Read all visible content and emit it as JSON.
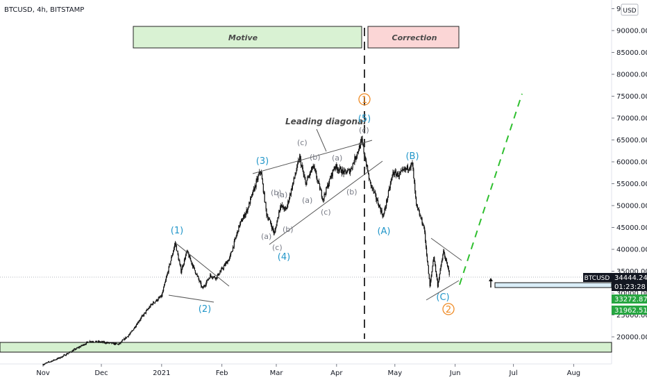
{
  "header": {
    "symbol_title": "BTCUSD, 4h, BITSTAMP"
  },
  "chart_data": {
    "type": "candlestick",
    "currency_label": "USD",
    "y_ticks": [
      "95",
      "90000.00",
      "85000.00",
      "80000.00",
      "75000.00",
      "70000.00",
      "65000.00",
      "60000.00",
      "55000.00",
      "50000.00",
      "45000.00",
      "40000.00",
      "35000.00",
      "30000.00",
      "25000.00",
      "20000.00"
    ],
    "x_ticks": [
      "Nov",
      "Dec",
      "2021",
      "Feb",
      "Mar",
      "Apr",
      "May",
      "Jun",
      "Jul",
      "Aug"
    ],
    "price_path": [
      [
        "2020-11-01",
        13700
      ],
      [
        "2020-11-10",
        15300
      ],
      [
        "2020-11-25",
        19000
      ],
      [
        "2020-12-01",
        18800
      ],
      [
        "2020-12-10",
        18300
      ],
      [
        "2020-12-16",
        20800
      ],
      [
        "2020-12-20",
        23500
      ],
      [
        "2020-12-27",
        27500
      ],
      [
        "2021-01-01",
        29300
      ],
      [
        "2021-01-08",
        41500
      ],
      [
        "2021-01-11",
        35000
      ],
      [
        "2021-01-14",
        39500
      ],
      [
        "2021-01-22",
        31000
      ],
      [
        "2021-01-26",
        34000
      ],
      [
        "2021-01-29",
        33500
      ],
      [
        "2021-02-05",
        38000
      ],
      [
        "2021-02-10",
        45500
      ],
      [
        "2021-02-14",
        49000
      ],
      [
        "2021-02-20",
        57000
      ],
      [
        "2021-02-21",
        58000
      ],
      [
        "2021-02-24",
        48000
      ],
      [
        "2021-02-26",
        46000
      ],
      [
        "2021-02-28",
        43500
      ],
      [
        "2021-03-03",
        50000
      ],
      [
        "2021-03-06",
        49000
      ],
      [
        "2021-03-13",
        61000
      ],
      [
        "2021-03-16",
        55000
      ],
      [
        "2021-03-20",
        59000
      ],
      [
        "2021-03-25",
        51500
      ],
      [
        "2021-03-31",
        59000
      ],
      [
        "2021-04-05",
        57500
      ],
      [
        "2021-04-08",
        58000
      ],
      [
        "2021-04-14",
        64800
      ],
      [
        "2021-04-18",
        55500
      ],
      [
        "2021-04-25",
        47500
      ],
      [
        "2021-04-30",
        57500
      ],
      [
        "2021-05-03",
        57000
      ],
      [
        "2021-05-10",
        59500
      ],
      [
        "2021-05-12",
        50000
      ],
      [
        "2021-05-16",
        45000
      ],
      [
        "2021-05-19",
        31500
      ],
      [
        "2021-05-21",
        38500
      ],
      [
        "2021-05-23",
        31800
      ],
      [
        "2021-05-26",
        39500
      ],
      [
        "2021-05-29",
        34444
      ]
    ],
    "current_price": {
      "label": "BTCUSD",
      "value": "34444.24",
      "countdown": "01:23:28"
    },
    "price_badges": [
      "33272.87",
      "31962.51"
    ],
    "boxes": [
      {
        "text": "Motive",
        "color": "#d9f2d3"
      },
      {
        "text": "Correction",
        "color": "#fbd6d6"
      }
    ],
    "annotation_text": "Leading diagonal",
    "wave_labels": {
      "w1": "(1)",
      "w2": "(2)",
      "w3": "(3)",
      "w4": "(4)",
      "w5": "(5)",
      "wa": "(A)",
      "wb": "(B)",
      "wc": "(C)",
      "big1": "1",
      "big2": "2"
    },
    "sub_labels": [
      "(b)",
      "(a)",
      "(a)",
      "(c)",
      "(b)",
      "(c)",
      "(b)",
      "(a)",
      "(a)",
      "(c)",
      "(b)",
      "(c)"
    ],
    "wave_color": "#2196c9",
    "circle_color": "#ef8a23",
    "projection_color": "#2ebf2e",
    "support_zone_color": "#d5f0cf"
  }
}
